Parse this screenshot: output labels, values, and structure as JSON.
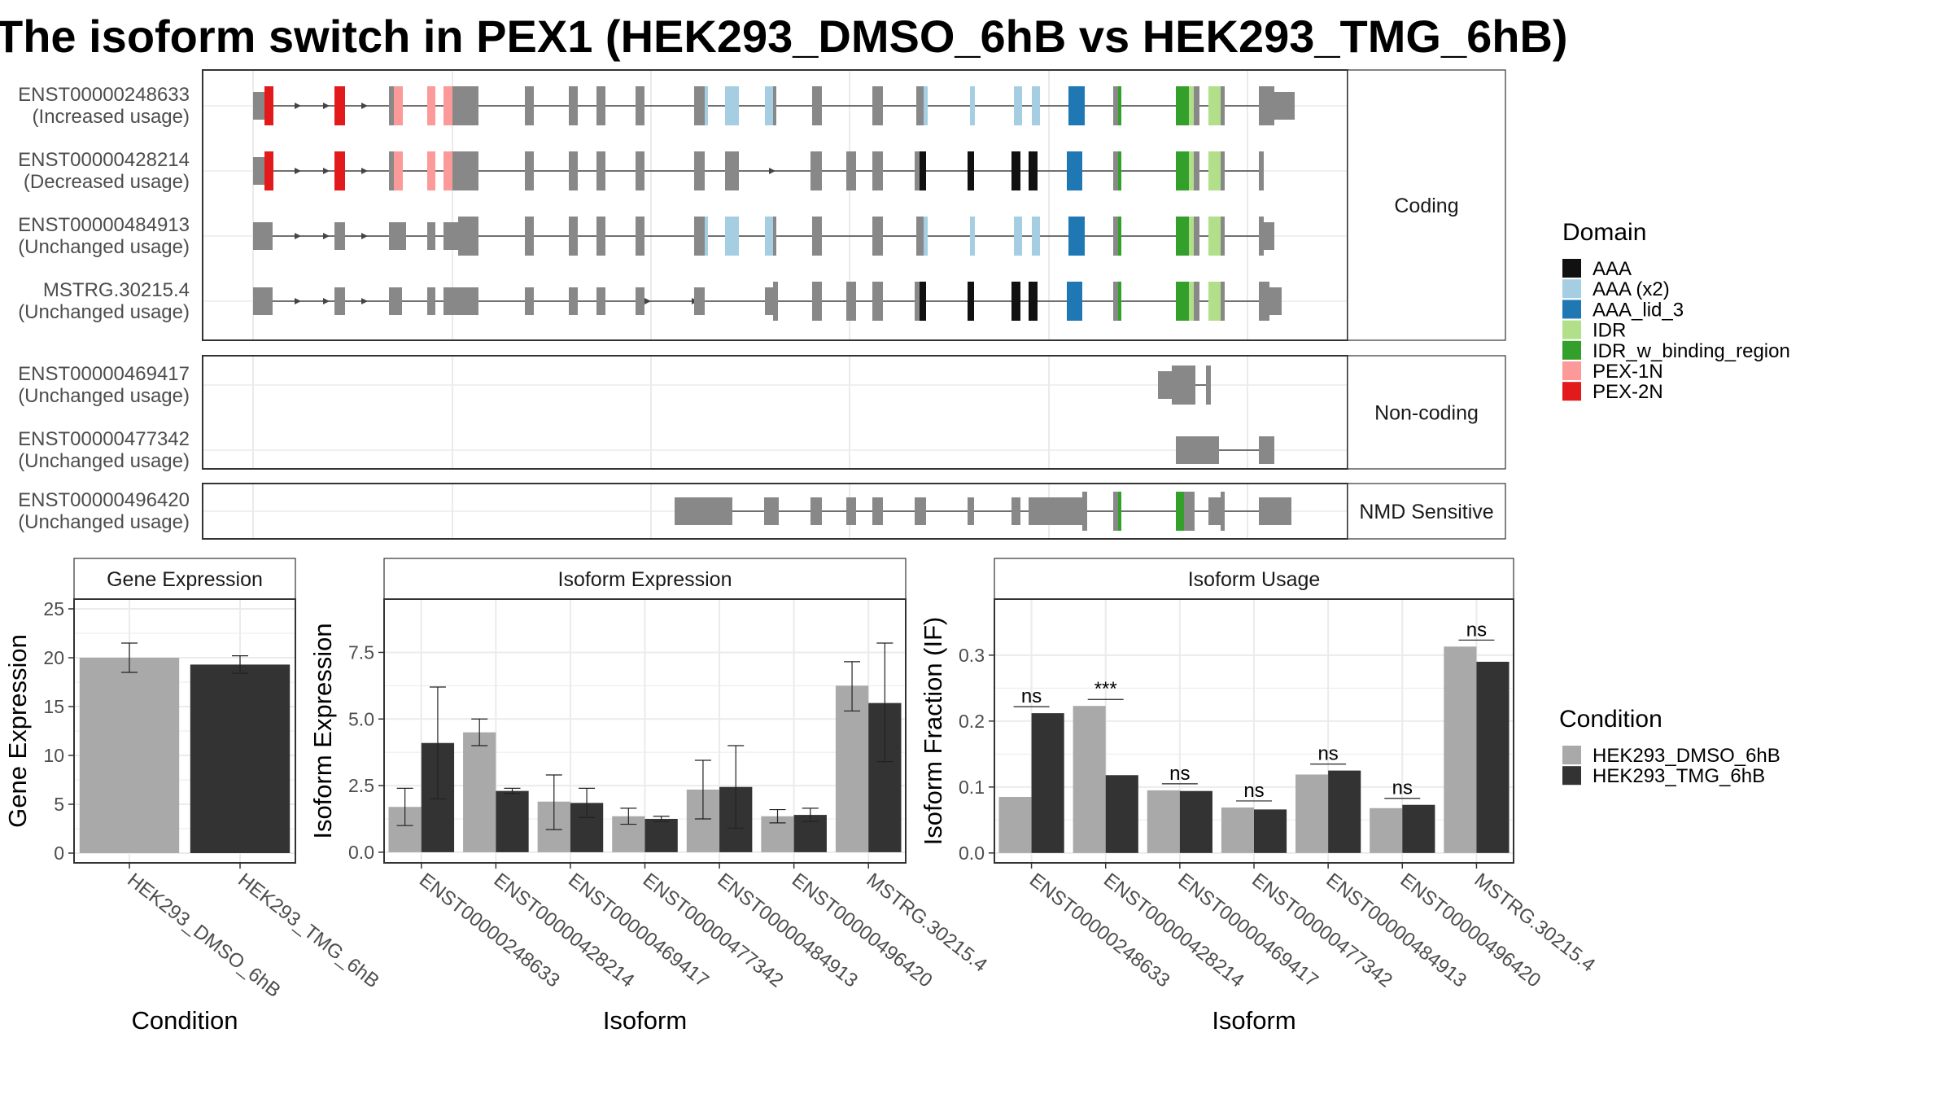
{
  "title": "The isoform switch in PEX1 (HEK293_DMSO_6hB vs HEK293_TMG_6hB)",
  "colors": {
    "intron": "#444444",
    "exon_default": "#888888",
    "dmso": "#A9A9A9",
    "tmg": "#333333",
    "panel_border": "#333333",
    "strip_fill": "#FFFFFF",
    "grid": "#EBEBEB"
  },
  "transcript_panels": [
    {
      "label": "Coding",
      "transcripts": [
        {
          "id": "ENST00000248633",
          "usage": "(Increased usage)"
        },
        {
          "id": "ENST00000428214",
          "usage": "(Decreased usage)"
        },
        {
          "id": "ENST00000484913",
          "usage": "(Unchanged usage)"
        },
        {
          "id": "MSTRG.30215.4",
          "usage": "(Unchanged usage)"
        }
      ]
    },
    {
      "label": "Non-coding",
      "transcripts": [
        {
          "id": "ENST00000469417",
          "usage": "(Unchanged usage)"
        },
        {
          "id": "ENST00000477342",
          "usage": "(Unchanged usage)"
        }
      ]
    },
    {
      "label": "NMD Sensitive",
      "transcripts": [
        {
          "id": "ENST00000496420",
          "usage": "(Unchanged usage)"
        }
      ]
    }
  ],
  "domain_legend": {
    "title": "Domain",
    "items": [
      {
        "name": "AAA",
        "color": "#111111"
      },
      {
        "name": "AAA (x2)",
        "color": "#A6CEE3"
      },
      {
        "name": "AAA_lid_3",
        "color": "#1F78B4"
      },
      {
        "name": "IDR",
        "color": "#B2DF8A"
      },
      {
        "name": "IDR_w_binding_region",
        "color": "#33A02C"
      },
      {
        "name": "PEX-1N",
        "color": "#FB9A99"
      },
      {
        "name": "PEX-2N",
        "color": "#E31A1C"
      }
    ]
  },
  "condition_legend": {
    "title": "Condition",
    "items": [
      {
        "name": "HEK293_DMSO_6hB",
        "color": "#A9A9A9"
      },
      {
        "name": "HEK293_TMG_6hB",
        "color": "#333333"
      }
    ]
  },
  "chart_data": [
    {
      "type": "bar",
      "title": "Gene Expression",
      "xlabel": "Condition",
      "ylabel": "Gene Expression",
      "categories": [
        "HEK293_DMSO_6hB",
        "HEK293_TMG_6hB"
      ],
      "values": [
        20.0,
        19.3
      ],
      "errors": [
        [
          18.5,
          21.5
        ],
        [
          18.4,
          20.2
        ]
      ],
      "ylim": [
        -1,
        26
      ],
      "yticks": [
        0,
        5,
        10,
        15,
        20,
        25
      ],
      "ytick_labels": [
        "0",
        "5",
        "10",
        "15",
        "20",
        "25"
      ],
      "grid": true
    },
    {
      "type": "bar",
      "title": "Isoform Expression",
      "xlabel": "Isoform",
      "ylabel": "Isoform Expression",
      "categories": [
        "ENST00000248633",
        "ENST00000428214",
        "ENST00000469417",
        "ENST00000477342",
        "ENST00000484913",
        "ENST00000496420",
        "MSTRG.30215.4"
      ],
      "series": [
        {
          "name": "HEK293_DMSO_6hB",
          "values": [
            1.7,
            4.5,
            1.9,
            1.35,
            2.35,
            1.35,
            6.25
          ],
          "errors": [
            [
              1.0,
              2.4
            ],
            [
              4.0,
              5.0
            ],
            [
              0.85,
              2.9
            ],
            [
              1.05,
              1.65
            ],
            [
              1.25,
              3.45
            ],
            [
              1.1,
              1.6
            ],
            [
              5.3,
              7.15
            ]
          ]
        },
        {
          "name": "HEK293_TMG_6hB",
          "values": [
            4.1,
            2.3,
            1.85,
            1.25,
            2.45,
            1.4,
            5.6
          ],
          "errors": [
            [
              2.0,
              6.2
            ],
            [
              2.2,
              2.4
            ],
            [
              1.3,
              2.4
            ],
            [
              1.15,
              1.35
            ],
            [
              0.9,
              4.0
            ],
            [
              1.15,
              1.65
            ],
            [
              3.4,
              7.85
            ]
          ]
        }
      ],
      "ylim": [
        -0.4,
        9.5
      ],
      "yticks": [
        0,
        2.5,
        5,
        7.5
      ],
      "ytick_labels": [
        "0.0",
        "2.5",
        "5.0",
        "7.5"
      ],
      "grid": true
    },
    {
      "type": "bar",
      "title": "Isoform Usage",
      "xlabel": "Isoform",
      "ylabel": "Isoform Fraction (IF)",
      "categories": [
        "ENST00000248633",
        "ENST00000428214",
        "ENST00000469417",
        "ENST00000477342",
        "ENST00000484913",
        "ENST00000496420",
        "MSTRG.30215.4"
      ],
      "series": [
        {
          "name": "HEK293_DMSO_6hB",
          "values": [
            0.085,
            0.223,
            0.095,
            0.069,
            0.119,
            0.068,
            0.313
          ]
        },
        {
          "name": "HEK293_TMG_6hB",
          "values": [
            0.212,
            0.118,
            0.094,
            0.066,
            0.125,
            0.073,
            0.29
          ]
        }
      ],
      "annotations": [
        "ns",
        "***",
        "ns",
        "ns",
        "ns",
        "ns",
        "ns"
      ],
      "ylim": [
        -0.015,
        0.385
      ],
      "yticks": [
        0,
        0.1,
        0.2,
        0.3
      ],
      "ytick_labels": [
        "0.0",
        "0.1",
        "0.2",
        "0.3"
      ],
      "grid": true
    }
  ]
}
